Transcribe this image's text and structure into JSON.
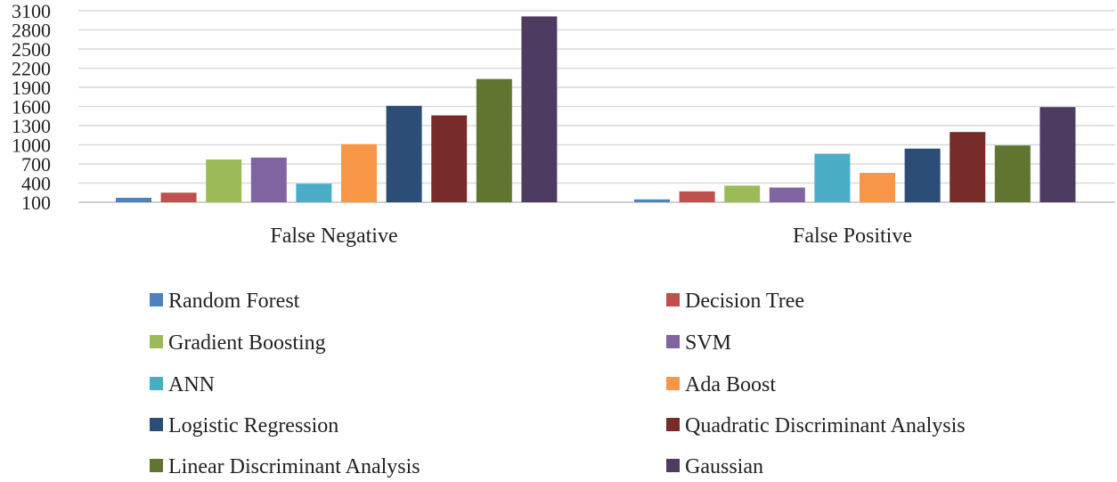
{
  "chart_data": {
    "type": "bar",
    "title": "",
    "xlabel": "",
    "ylabel": "",
    "categories": [
      "False Negative",
      "False Positive"
    ],
    "series": [
      {
        "name": "Random Forest",
        "color": "#4f81bd",
        "values": [
          170,
          145
        ]
      },
      {
        "name": "Decision Tree",
        "color": "#c0504d",
        "values": [
          250,
          270
        ]
      },
      {
        "name": "Gradient Boosting",
        "color": "#9bbb59",
        "values": [
          770,
          360
        ]
      },
      {
        "name": "SVM",
        "color": "#8064a2",
        "values": [
          800,
          330
        ]
      },
      {
        "name": "ANN",
        "color": "#4bacc6",
        "values": [
          390,
          860
        ]
      },
      {
        "name": "Ada Boost",
        "color": "#f79646",
        "values": [
          1010,
          560
        ]
      },
      {
        "name": "Logistic Regression",
        "color": "#2c4d75",
        "values": [
          1610,
          940
        ]
      },
      {
        "name": "Quadratic Discriminant Analysis",
        "color": "#772c2a",
        "values": [
          1460,
          1200
        ]
      },
      {
        "name": "Linear Discriminant Analysis",
        "color": "#5f7530",
        "values": [
          2030,
          990
        ]
      },
      {
        "name": "Gaussian",
        "color": "#4d3b62",
        "values": [
          3010,
          1590
        ]
      }
    ],
    "yticks": [
      "100",
      "400",
      "700",
      "1000",
      "1300",
      "1600",
      "1900",
      "2200",
      "2500",
      "2800",
      "3100"
    ],
    "ylim": [
      100,
      3100
    ],
    "grid": true,
    "legend_position": "bottom"
  }
}
